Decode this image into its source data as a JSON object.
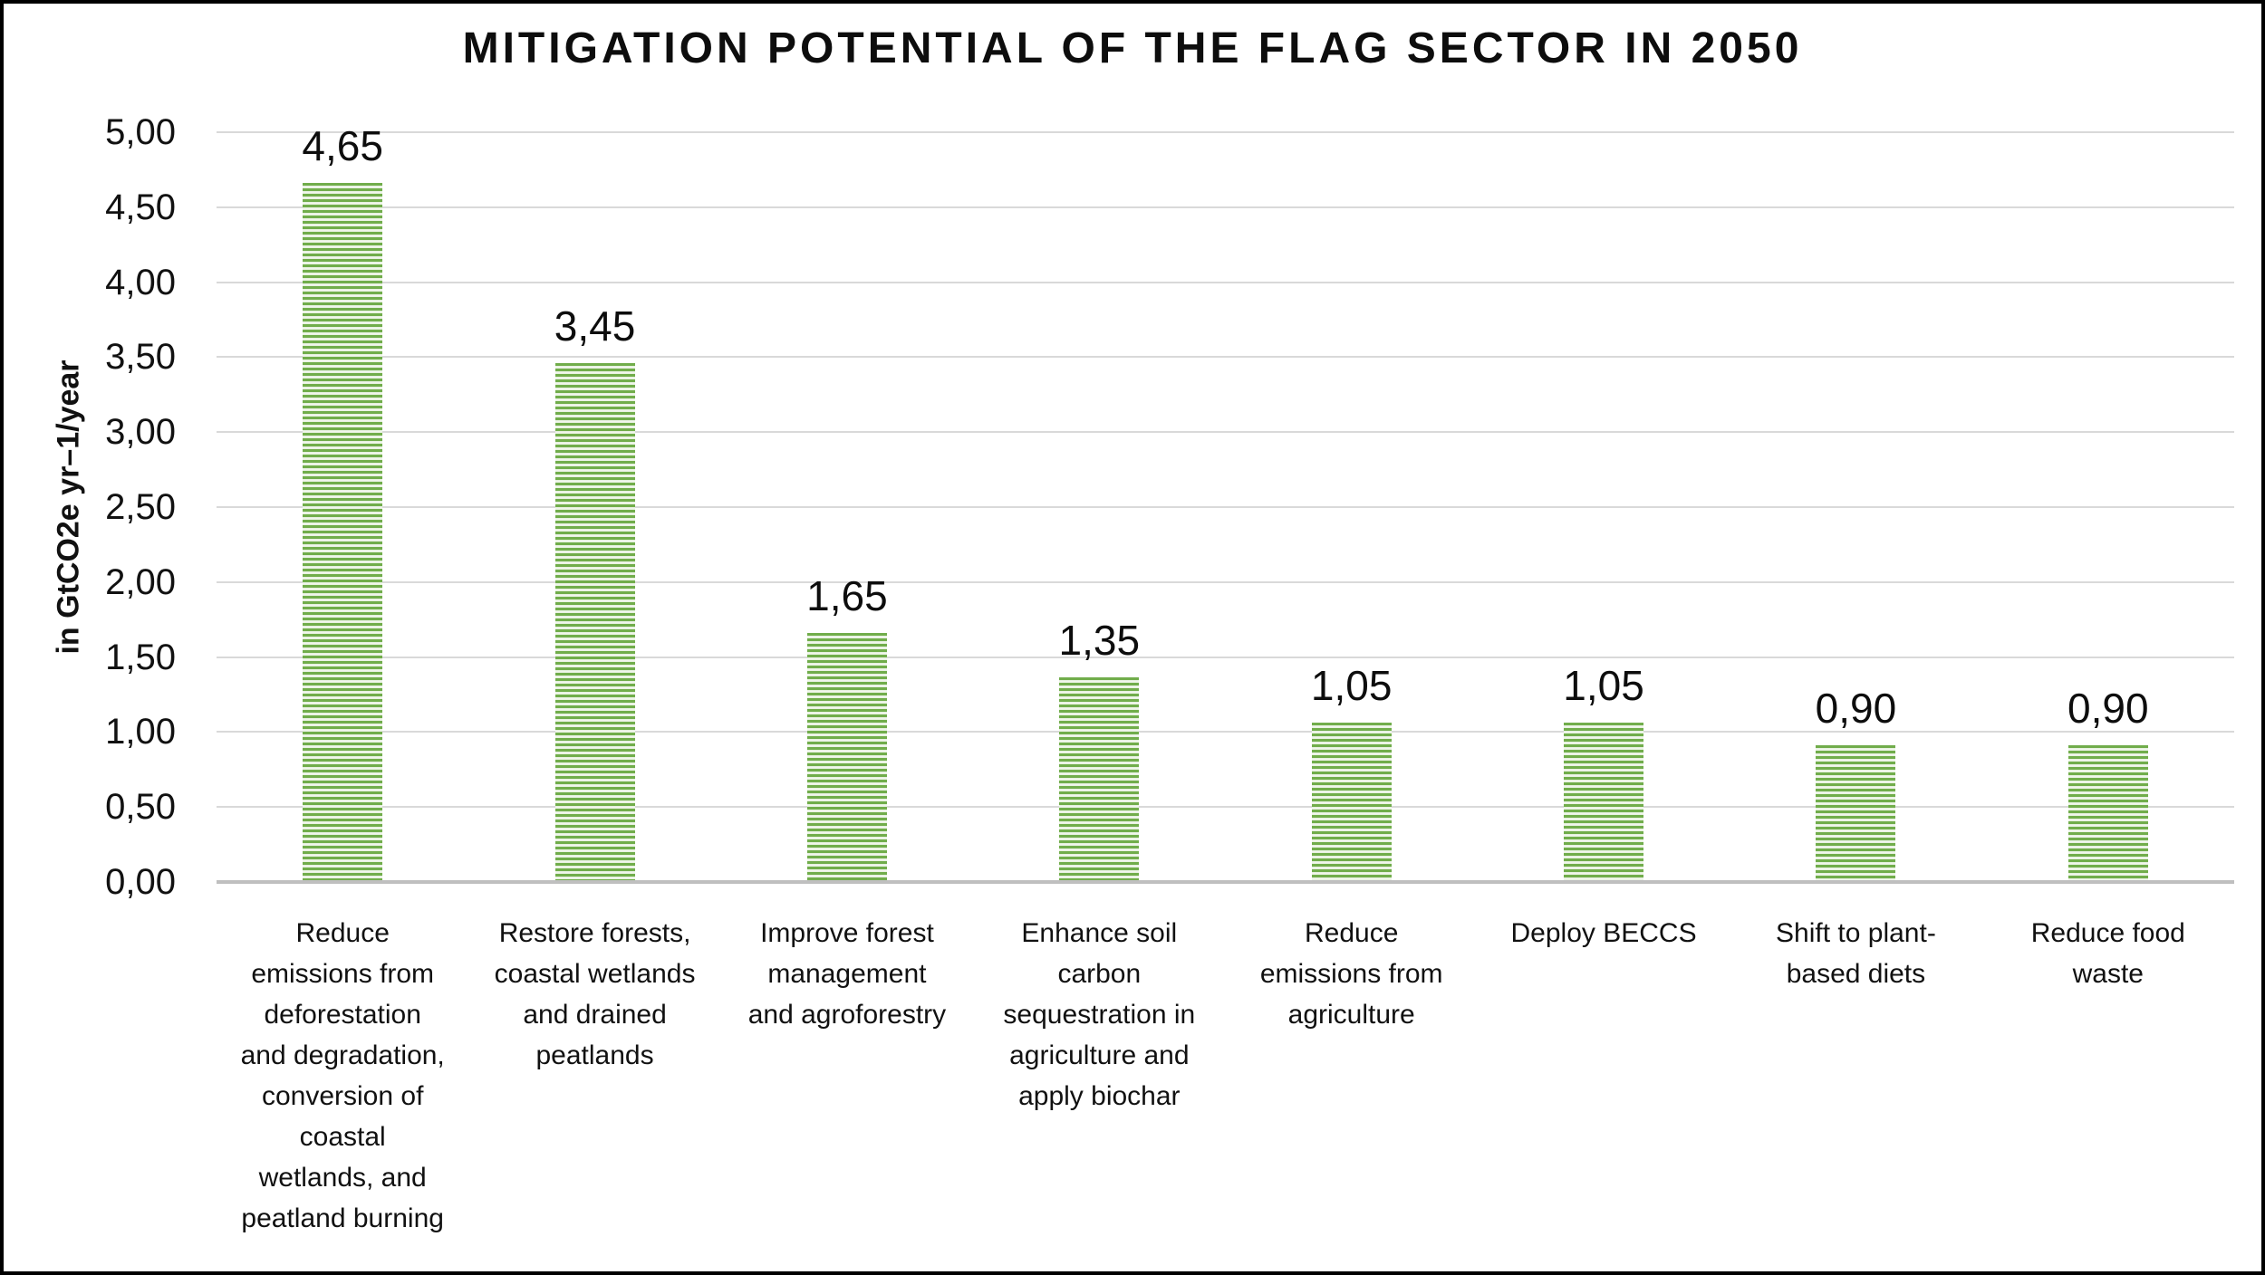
{
  "title": "MITIGATION POTENTIAL OF THE FLAG SECTOR IN 2050",
  "y_axis": {
    "label": "in GtCO2e yr–1/year",
    "tick_labels": [
      "0,00",
      "0,50",
      "1,00",
      "1,50",
      "2,00",
      "2,50",
      "3,00",
      "3,50",
      "4,00",
      "4,50",
      "5,00"
    ]
  },
  "chart_data": {
    "type": "bar",
    "title": "MITIGATION POTENTIAL OF THE FLAG SECTOR IN 2050",
    "xlabel": "",
    "ylabel": "in GtCO2e yr–1/year",
    "ylim": [
      0,
      5
    ],
    "ytick_interval": 0.5,
    "grid": true,
    "legend": "none",
    "number_format": "comma-decimal",
    "categories": [
      "Reduce emissions from deforestation and degradation, conversion of coastal wetlands, and peatland burning",
      "Restore forests, coastal wetlands and drained peatlands",
      "Improve forest management and agroforestry",
      "Enhance soil carbon sequestration in agriculture and apply biochar",
      "Reduce emissions from agriculture",
      "Deploy BECCS",
      "Shift to plant-based diets",
      "Reduce food waste"
    ],
    "values": [
      4.65,
      3.45,
      1.65,
      1.35,
      1.05,
      1.05,
      0.9,
      0.9
    ],
    "bars": [
      {
        "category_wrapped": "Reduce\nemissions from\ndeforestation\nand degradation,\nconversion of\ncoastal\nwetlands, and\npeatland burning",
        "value": 4.65,
        "data_label": "4,65"
      },
      {
        "category_wrapped": "Restore forests,\ncoastal wetlands\nand drained\npeatlands",
        "value": 3.45,
        "data_label": "3,45"
      },
      {
        "category_wrapped": "Improve forest\nmanagement\nand agroforestry",
        "value": 1.65,
        "data_label": "1,65"
      },
      {
        "category_wrapped": "Enhance soil\ncarbon\nsequestration in\nagriculture and\napply biochar",
        "value": 1.35,
        "data_label": "1,35"
      },
      {
        "category_wrapped": "Reduce\nemissions from\nagriculture",
        "value": 1.05,
        "data_label": "1,05"
      },
      {
        "category_wrapped": "Deploy BECCS",
        "value": 1.05,
        "data_label": "1,05"
      },
      {
        "category_wrapped": "Shift to plant-\nbased diets",
        "value": 0.9,
        "data_label": "0,90"
      },
      {
        "category_wrapped": "Reduce food\nwaste",
        "value": 0.9,
        "data_label": "0,90"
      }
    ],
    "colors": {
      "bar_stripe_green": "#71ad4b",
      "bar_stripe_light": "#e4efdc",
      "gridline": "#d9d9d9",
      "axis_baseline": "#bfbfbf",
      "text": "#111111",
      "frame_border": "#000000",
      "background": "#ffffff"
    }
  }
}
